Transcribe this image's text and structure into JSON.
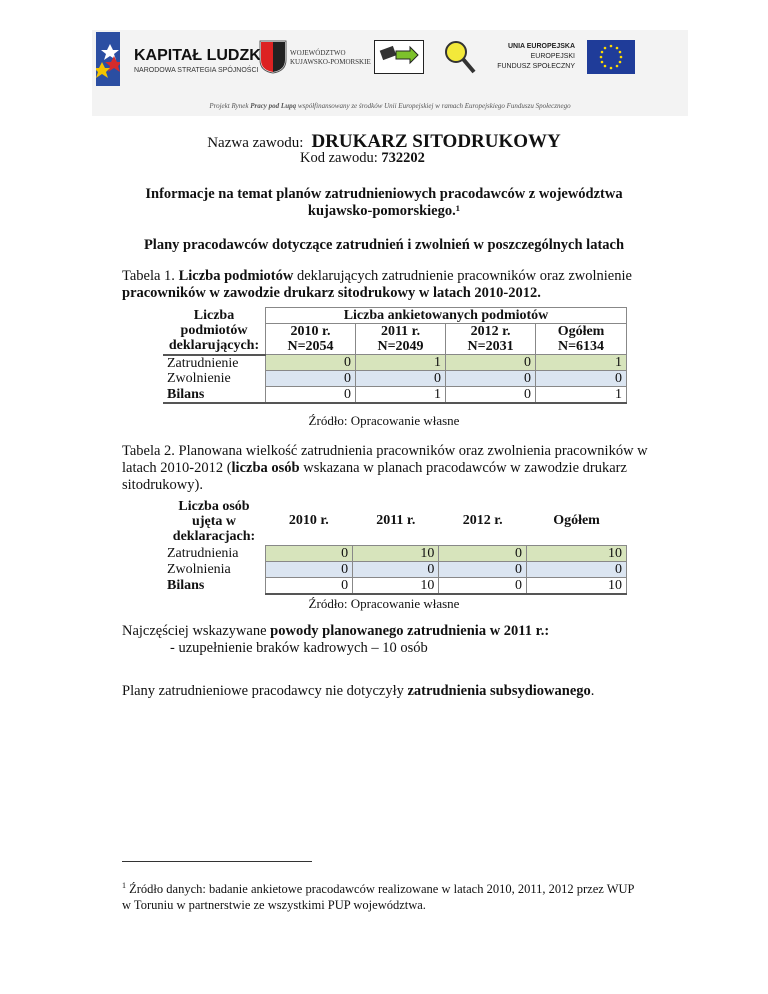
{
  "header": {
    "kapital_title": "KAPITAŁ LUDZKI",
    "kapital_sub": "NARODOWA STRATEGIA SPÓJNOŚCI",
    "woj_line1": "WOJEWÓDZTWO",
    "woj_line2": "KUJAWSKO-POMORSKIE",
    "ue_title": "UNIA EUROPEJSKA",
    "ue_line2": "EUROPEJSKI",
    "ue_line3": "FUNDUSZ SPOŁECZNY",
    "project_pre": "Projekt Rynek ",
    "project_bold": "Pracy pod Lupą",
    "project_post": " współfinansowany ze środków Unii Europejskiej w ramach Europejskiego Funduszu Społecznego"
  },
  "title": {
    "label": "Nazwa zawodu:",
    "value": "DRUKARZ SITODRUKOWY",
    "code_label": "Kod zawodu:",
    "code": "732202"
  },
  "heading1": "Informacje na temat planów zatrudnieniowych pracodawców z województwa kujawsko-pomorskiego.¹",
  "heading2": "Plany pracodawców dotyczące zatrudnień i zwolnień w poszczególnych latach",
  "table1": {
    "caption_pre": "Tabela 1. ",
    "caption_b1": "Liczba podmiotów",
    "caption_mid": " deklarujących zatrudnienie pracowników oraz zwolnienie ",
    "caption_b2": "pracowników w zawodzie drukarz sitodrukowy w latach 2010-2012.",
    "corner": "Liczba podmiotów deklarujących:",
    "group": "Liczba ankietowanych podmiotów",
    "cols": [
      {
        "y": "2010 r.",
        "n": "N=2054"
      },
      {
        "y": "2011 r.",
        "n": "N=2049"
      },
      {
        "y": "2012 r.",
        "n": "N=2031"
      },
      {
        "y": "Ogółem",
        "n": "N=6134"
      }
    ],
    "rows": [
      {
        "label": "Zatrudnienie",
        "v": [
          "0",
          "1",
          "0",
          "1"
        ]
      },
      {
        "label": "Zwolnienie",
        "v": [
          "0",
          "0",
          "0",
          "0"
        ]
      },
      {
        "label": "Bilans",
        "v": [
          "0",
          "1",
          "0",
          "1"
        ]
      }
    ],
    "source": "Źródło: Opracowanie własne"
  },
  "table2": {
    "caption_pre": "Tabela 2. Planowana wielkość zatrudnienia pracowników oraz zwolnienia pracowników w latach 2010-2012 (",
    "caption_b": "liczba osób",
    "caption_post": " wskazana w planach pracodawców w zawodzie drukarz sitodrukowy).",
    "corner": "Liczba osób ujęta w deklaracjach:",
    "cols": [
      "2010 r.",
      "2011 r.",
      "2012 r.",
      "Ogółem"
    ],
    "rows": [
      {
        "label": "Zatrudnienia",
        "v": [
          "0",
          "10",
          "0",
          "10"
        ]
      },
      {
        "label": "Zwolnienia",
        "v": [
          "0",
          "0",
          "0",
          "0"
        ]
      },
      {
        "label": "Bilans",
        "v": [
          "0",
          "10",
          "0",
          "10"
        ]
      }
    ],
    "source": "Źródło: Opracowanie własne"
  },
  "reasons": {
    "pre": "Najczęściej wskazywane ",
    "b": "powody planowanego zatrudnienia w 2011 r.:",
    "item": "- uzupełnienie braków kadrowych – 10 osób"
  },
  "subsidy": {
    "pre": "Plany zatrudnieniowe pracodawcy nie dotyczyły ",
    "b": "zatrudnienia subsydiowanego",
    "post": "."
  },
  "footnote": {
    "mark": "1",
    "text": " Źródło danych: badanie ankietowe pracodawców realizowane w latach 2010, 2011, 2012 przez WUP w Toruniu w partnerstwie ze wszystkimi PUP województwa."
  }
}
